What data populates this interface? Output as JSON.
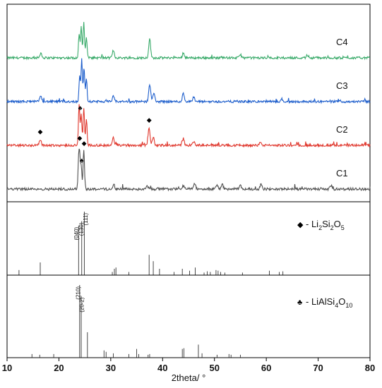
{
  "chart_data": [
    {
      "type": "line",
      "panel": "measured XRD patterns",
      "xlabel": "2theta/ °",
      "xlim": [
        10,
        80
      ],
      "x_ticks": [
        10,
        20,
        30,
        40,
        50,
        60,
        70,
        80
      ],
      "y_ticks": "none",
      "grid": false,
      "series": [
        {
          "name": "C4",
          "color": "#3bab6b",
          "baseline_level": 3,
          "noise_amp": 0.055,
          "peaks": [
            [
              16.5,
              0.12
            ],
            [
              23.9,
              0.55
            ],
            [
              24.3,
              0.75
            ],
            [
              24.8,
              0.85
            ],
            [
              25.3,
              0.5
            ],
            [
              30.5,
              0.18
            ],
            [
              37.5,
              0.45
            ],
            [
              44.0,
              0.12
            ],
            [
              55.0,
              0.08
            ],
            [
              68.0,
              0.06
            ]
          ]
        },
        {
          "name": "C3",
          "color": "#1f5fcc",
          "baseline_level": 2,
          "noise_amp": 0.055,
          "peaks": [
            [
              16.5,
              0.15
            ],
            [
              24.0,
              0.6
            ],
            [
              24.4,
              1.0
            ],
            [
              24.85,
              0.8
            ],
            [
              25.3,
              0.55
            ],
            [
              30.5,
              0.12
            ],
            [
              37.5,
              0.42
            ],
            [
              38.3,
              0.2
            ],
            [
              44.0,
              0.2
            ],
            [
              46.0,
              0.1
            ],
            [
              63.0,
              0.06
            ]
          ]
        },
        {
          "name": "C2",
          "color": "#e0392f",
          "baseline_level": 1,
          "noise_amp": 0.055,
          "peaks": [
            [
              16.4,
              0.14
            ],
            [
              23.9,
              0.95
            ],
            [
              24.3,
              0.75
            ],
            [
              24.8,
              0.9
            ],
            [
              25.3,
              0.6
            ],
            [
              30.5,
              0.18
            ],
            [
              37.4,
              0.42
            ],
            [
              38.2,
              0.2
            ],
            [
              44.0,
              0.16
            ],
            [
              46.0,
              0.08
            ],
            [
              58.9,
              0.08
            ]
          ]
        },
        {
          "name": "C1",
          "color": "#505050",
          "baseline_level": 0,
          "noise_amp": 0.06,
          "peaks": [
            [
              23.8,
              0.6
            ],
            [
              24.0,
              0.7
            ],
            [
              24.3,
              0.55
            ],
            [
              24.8,
              0.95
            ],
            [
              30.6,
              0.1
            ],
            [
              37.0,
              0.1
            ],
            [
              44.0,
              0.08
            ],
            [
              46.2,
              0.14
            ],
            [
              50.5,
              0.1
            ],
            [
              51.5,
              0.12
            ],
            [
              55.0,
              0.08
            ],
            [
              59.0,
              0.12
            ],
            [
              72.5,
              0.08
            ]
          ]
        }
      ],
      "series_labels": [
        "C4",
        "C3",
        "C2",
        "C1"
      ],
      "markers": [
        {
          "series": "C2",
          "x": 16.4,
          "symbol": "◆"
        },
        {
          "series": "C2",
          "x": 24.1,
          "symbol": "♣"
        },
        {
          "series": "C2",
          "x": 37.4,
          "symbol": "◆"
        },
        {
          "series": "C1",
          "x": 24.0,
          "symbol": "◆"
        },
        {
          "series": "C1",
          "x": 24.4,
          "symbol": "♣"
        },
        {
          "series": "C1",
          "x": 24.85,
          "symbol": "◆"
        }
      ]
    },
    {
      "type": "bar",
      "panel": "reference pattern",
      "legend_symbol": "◆",
      "legend_parts": [
        [
          "- Li",
          ""
        ],
        [
          "2",
          "sub"
        ],
        [
          "Si",
          ""
        ],
        [
          "2",
          "sub"
        ],
        [
          "O",
          ""
        ],
        [
          "5",
          "sub"
        ]
      ],
      "xlim": [
        10,
        80
      ],
      "ylim": [
        0,
        1
      ],
      "sticks": [
        [
          12.3,
          0.08
        ],
        [
          16.4,
          0.2
        ],
        [
          23.8,
          0.78
        ],
        [
          24.4,
          0.85
        ],
        [
          24.9,
          1.0
        ],
        [
          30.3,
          0.05
        ],
        [
          30.7,
          0.1
        ],
        [
          31.0,
          0.12
        ],
        [
          33.5,
          0.05
        ],
        [
          37.4,
          0.32
        ],
        [
          38.2,
          0.22
        ],
        [
          39.4,
          0.1
        ],
        [
          42.2,
          0.05
        ],
        [
          43.8,
          0.1
        ],
        [
          45.2,
          0.07
        ],
        [
          46.3,
          0.12
        ],
        [
          48.0,
          0.04
        ],
        [
          48.6,
          0.06
        ],
        [
          49.2,
          0.05
        ],
        [
          50.3,
          0.08
        ],
        [
          50.7,
          0.07
        ],
        [
          51.2,
          0.05
        ],
        [
          52.0,
          0.04
        ],
        [
          55.4,
          0.04
        ],
        [
          60.6,
          0.07
        ],
        [
          62.5,
          0.05
        ],
        [
          63.2,
          0.06
        ]
      ],
      "hkl_labels": [
        {
          "x": 23.8,
          "text": "(040)"
        },
        {
          "x": 24.4,
          "text": "(130)"
        },
        {
          "x": 24.9,
          "text": "(111)"
        }
      ]
    },
    {
      "type": "bar",
      "panel": "reference pattern",
      "legend_symbol": "♣",
      "legend_parts": [
        [
          "- LiAlSi",
          ""
        ],
        [
          "4",
          "sub"
        ],
        [
          "O",
          ""
        ],
        [
          "10",
          "sub"
        ]
      ],
      "xlim": [
        10,
        80
      ],
      "ylim": [
        0,
        1
      ],
      "sticks": [
        [
          14.8,
          0.05
        ],
        [
          16.3,
          0.04
        ],
        [
          19.0,
          0.05
        ],
        [
          24.0,
          1.0
        ],
        [
          24.3,
          0.85
        ],
        [
          25.5,
          0.35
        ],
        [
          28.7,
          0.1
        ],
        [
          29.1,
          0.08
        ],
        [
          30.5,
          0.06
        ],
        [
          33.5,
          0.05
        ],
        [
          35.0,
          0.12
        ],
        [
          35.4,
          0.05
        ],
        [
          37.2,
          0.04
        ],
        [
          37.5,
          0.05
        ],
        [
          43.8,
          0.12
        ],
        [
          44.1,
          0.13
        ],
        [
          46.9,
          0.18
        ],
        [
          47.6,
          0.06
        ],
        [
          50.5,
          0.04
        ],
        [
          52.8,
          0.05
        ],
        [
          53.2,
          0.04
        ],
        [
          55.0,
          0.04
        ]
      ],
      "hkl_labels": [
        {
          "x": 24.0,
          "text": "(210)"
        },
        {
          "x": 24.3,
          "text": "(20-2)"
        }
      ]
    }
  ]
}
